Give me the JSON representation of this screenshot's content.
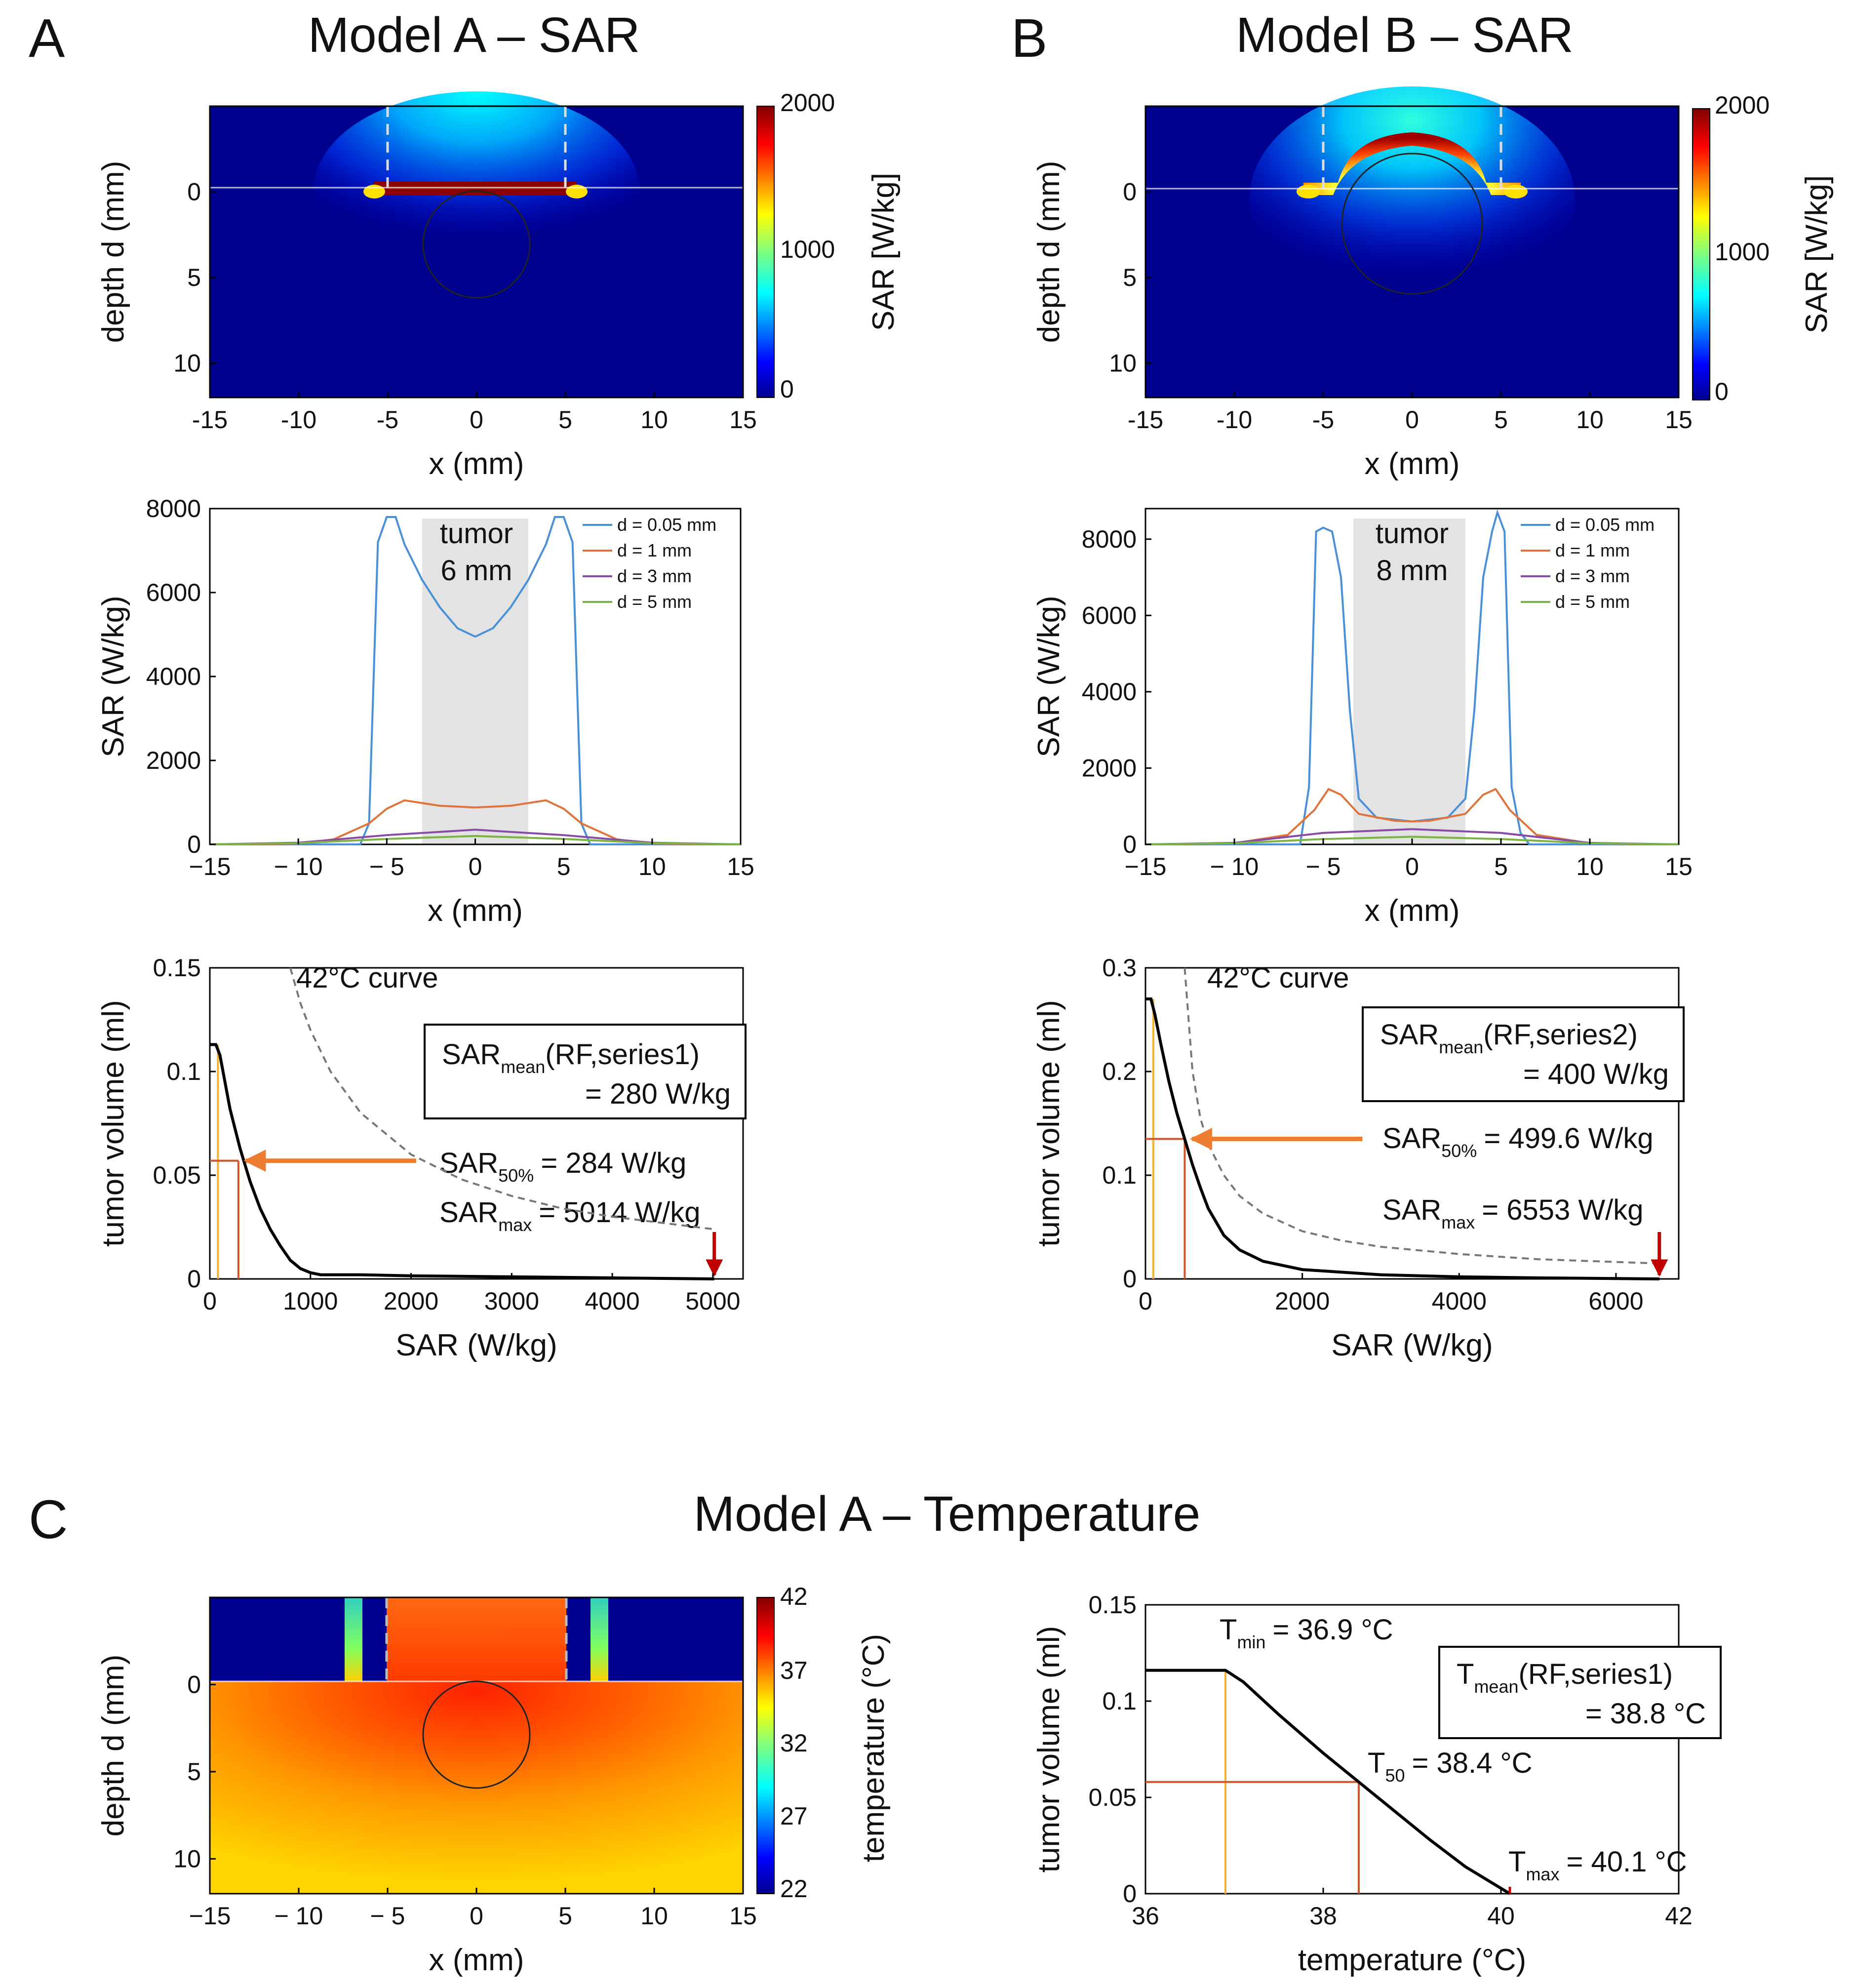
{
  "panels": {
    "A": {
      "letter": "A",
      "title": "Model A – SAR"
    },
    "B": {
      "letter": "B",
      "title": "Model B – SAR"
    },
    "C": {
      "letter": "C",
      "title": "Model A – Temperature"
    }
  },
  "colors": {
    "series_blue": "#4a90d9",
    "series_orange": "#e0733a",
    "series_purple": "#8a4aa8",
    "series_green": "#7cb342",
    "arrow_orange": "#ed7d31",
    "marker_red": "#c00000",
    "tumor_shade": "#e3e3e3",
    "heatmap_dark_blue": "#00008f"
  },
  "chart_data": [
    {
      "id": "A1",
      "type": "heatmap",
      "xlabel": "x (mm)",
      "ylabel": "depth d (mm)",
      "xlim": [
        -15,
        15
      ],
      "ylim": [
        12,
        -5
      ],
      "xticks": [
        "-15",
        "-10",
        "-5",
        "0",
        "5",
        "10",
        "15"
      ],
      "xtick_values": [
        -15,
        -10,
        -5,
        0,
        5,
        10,
        15
      ],
      "yticks": [
        "0",
        "5",
        "10"
      ],
      "ytick_values": [
        0,
        5,
        10
      ],
      "colorbar": {
        "label": "SAR [W/kg]",
        "min": 0,
        "max": 2000,
        "ticks": [
          "0",
          "1000",
          "2000"
        ]
      },
      "electrode_dashes_x": [
        -5,
        5
      ],
      "tumor_circle": {
        "cx": 0,
        "cy": 3,
        "r": 3
      }
    },
    {
      "id": "B1",
      "type": "heatmap",
      "xlabel": "x (mm)",
      "ylabel": "depth d (mm)",
      "xlim": [
        -15,
        15
      ],
      "ylim": [
        12,
        -5
      ],
      "xticks": [
        "-15",
        "-10",
        "-5",
        "0",
        "5",
        "10",
        "15"
      ],
      "xtick_values": [
        -15,
        -10,
        -5,
        0,
        5,
        10,
        15
      ],
      "yticks": [
        "0",
        "5",
        "10"
      ],
      "ytick_values": [
        0,
        5,
        10
      ],
      "colorbar": {
        "label": "SAR [W/kg]",
        "min": 0,
        "max": 2000,
        "ticks": [
          "0",
          "1000",
          "2000"
        ]
      },
      "electrode_dashes_x": [
        -5,
        5
      ],
      "tumor_circle": {
        "cx": 0,
        "cy": 2,
        "r": 4
      }
    },
    {
      "id": "A2",
      "type": "line",
      "xlabel": "x (mm)",
      "ylabel": "SAR (W/kg)",
      "xlim": [
        -15,
        15
      ],
      "ylim": [
        0,
        8000
      ],
      "xticks": [
        "−15",
        "− 10",
        "− 5",
        "0",
        "5",
        "10",
        "15"
      ],
      "xtick_values": [
        -15,
        -10,
        -5,
        0,
        5,
        10,
        15
      ],
      "yticks": [
        "0",
        "2000",
        "4000",
        "6000",
        "8000"
      ],
      "ytick_values": [
        0,
        2000,
        4000,
        6000,
        8000
      ],
      "tumor_band": {
        "x0": -3,
        "x1": 3,
        "label_1": "tumor",
        "label_2": "6 mm"
      },
      "series": [
        {
          "name": "d = 0.05 mm",
          "color": "#4a90d9",
          "x": [
            -15,
            -6.5,
            -6,
            -5.5,
            -5,
            -4.5,
            -4,
            -3,
            -2,
            -1,
            0,
            1,
            2,
            3,
            4,
            4.5,
            5,
            5.5,
            6,
            6.5,
            15
          ],
          "y": [
            0,
            0,
            500,
            7200,
            7800,
            7800,
            7150,
            6300,
            5650,
            5150,
            4950,
            5150,
            5650,
            6300,
            7150,
            7800,
            7800,
            7200,
            500,
            0,
            0
          ]
        },
        {
          "name": "d = 1 mm",
          "color": "#e0733a",
          "x": [
            -15,
            -10,
            -8,
            -6,
            -5,
            -4,
            -2,
            0,
            2,
            4,
            5,
            6,
            8,
            10,
            15
          ],
          "y": [
            0,
            20,
            120,
            500,
            850,
            1050,
            920,
            880,
            920,
            1050,
            850,
            500,
            120,
            20,
            0
          ]
        },
        {
          "name": "d = 3 mm",
          "color": "#8a4aa8",
          "x": [
            -15,
            -10,
            -5,
            0,
            5,
            10,
            15
          ],
          "y": [
            0,
            40,
            220,
            350,
            220,
            40,
            0
          ]
        },
        {
          "name": "d = 5 mm",
          "color": "#7cb342",
          "x": [
            -15,
            -10,
            -5,
            0,
            5,
            10,
            15
          ],
          "y": [
            0,
            30,
            130,
            200,
            130,
            30,
            0
          ]
        }
      ]
    },
    {
      "id": "B2",
      "type": "line",
      "xlabel": "x (mm)",
      "ylabel": "SAR (W/kg)",
      "xlim": [
        -15,
        15
      ],
      "ylim": [
        0,
        8800
      ],
      "xticks": [
        "−15",
        "− 10",
        "− 5",
        "0",
        "5",
        "10",
        "15"
      ],
      "xtick_values": [
        -15,
        -10,
        -5,
        0,
        5,
        10,
        15
      ],
      "yticks": [
        "0",
        "2000",
        "4000",
        "6000",
        "8000"
      ],
      "ytick_values": [
        0,
        2000,
        4000,
        6000,
        8000
      ],
      "tumor_band": {
        "x0": -3.3,
        "x1": 3,
        "label_1": "tumor",
        "label_2": "8 mm"
      },
      "series": [
        {
          "name": "d = 0.05 mm",
          "color": "#4a90d9",
          "x": [
            -15,
            -6.3,
            -5.8,
            -5.4,
            -5,
            -4.5,
            -4,
            -3.5,
            -3,
            -2,
            0,
            2,
            3,
            3.5,
            4,
            4.5,
            4.8,
            5.2,
            5.6,
            6.1,
            6.6,
            15
          ],
          "y": [
            0,
            0,
            1500,
            8200,
            8300,
            8200,
            7000,
            3500,
            1200,
            700,
            600,
            700,
            1200,
            3500,
            7000,
            8200,
            8700,
            8200,
            1500,
            300,
            0,
            0
          ]
        },
        {
          "name": "d = 1 mm",
          "color": "#e0733a",
          "x": [
            -15,
            -10,
            -7,
            -5.5,
            -4.7,
            -4,
            -3,
            -1,
            0,
            1,
            3,
            4,
            4.7,
            5.5,
            7,
            10,
            15
          ],
          "y": [
            0,
            30,
            250,
            900,
            1450,
            1300,
            800,
            620,
            600,
            620,
            800,
            1300,
            1450,
            900,
            250,
            30,
            0
          ]
        },
        {
          "name": "d = 3 mm",
          "color": "#8a4aa8",
          "x": [
            -15,
            -10,
            -5,
            0,
            5,
            10,
            15
          ],
          "y": [
            0,
            40,
            300,
            400,
            300,
            40,
            0
          ]
        },
        {
          "name": "d = 5 mm",
          "color": "#7cb342",
          "x": [
            -15,
            -10,
            -5,
            0,
            5,
            10,
            15
          ],
          "y": [
            0,
            30,
            140,
            200,
            140,
            30,
            0
          ]
        }
      ]
    },
    {
      "id": "A3",
      "type": "line",
      "xlabel": "SAR (W/kg)",
      "ylabel": "tumor volume (ml)",
      "xlim": [
        0,
        5300
      ],
      "ylim": [
        0,
        0.15
      ],
      "xticks": [
        "0",
        "1000",
        "2000",
        "3000",
        "4000",
        "5000"
      ],
      "xtick_values": [
        0,
        1000,
        2000,
        3000,
        4000,
        5000
      ],
      "yticks": [
        "0",
        "0.05",
        "0.1",
        "0.15"
      ],
      "ytick_values": [
        0,
        0.05,
        0.1,
        0.15
      ],
      "curve_label": "42°C curve",
      "box_text": {
        "main": "SAR",
        "sub": "mean",
        "rest": "(RF,series1)",
        "line2": "= 280 W/kg"
      },
      "sar50": {
        "main": "SAR",
        "sub": "50%",
        "value": "= 284 W/kg",
        "x": 284,
        "y": 0.057
      },
      "sarmax": {
        "main": "SAR",
        "sub": "max",
        "value": "= 5014 W/kg",
        "x": 5014
      },
      "mean_x": 80,
      "volume_curve": {
        "x": [
          0,
          60,
          100,
          200,
          300,
          400,
          500,
          600,
          700,
          800,
          900,
          1000,
          1100,
          1500,
          2000,
          3000,
          4000,
          5014
        ],
        "y": [
          0.113,
          0.113,
          0.108,
          0.082,
          0.063,
          0.047,
          0.034,
          0.024,
          0.016,
          0.009,
          0.005,
          0.003,
          0.002,
          0.002,
          0.0015,
          0.001,
          0.0005,
          0
        ]
      },
      "reference_curve": {
        "x": [
          800,
          900,
          1000,
          1200,
          1500,
          2000,
          2500,
          3000,
          3500,
          4000,
          4500,
          5000
        ],
        "y": [
          0.15,
          0.133,
          0.12,
          0.1,
          0.08,
          0.06,
          0.048,
          0.04,
          0.034,
          0.03,
          0.027,
          0.024
        ]
      }
    },
    {
      "id": "B3",
      "type": "line",
      "xlabel": "SAR (W/kg)",
      "ylabel": "tumor volume (ml)",
      "xlim": [
        0,
        6800
      ],
      "ylim": [
        0,
        0.3
      ],
      "xticks": [
        "0",
        "2000",
        "4000",
        "6000"
      ],
      "xtick_values": [
        0,
        2000,
        4000,
        6000
      ],
      "yticks": [
        "0",
        "0.1",
        "0.2",
        "0.3"
      ],
      "ytick_values": [
        0,
        0.1,
        0.2,
        0.3
      ],
      "curve_label": "42°C curve",
      "box_text": {
        "main": "SAR",
        "sub": "mean",
        "rest": "(RF,series2)",
        "line2": "= 400 W/kg"
      },
      "sar50": {
        "main": "SAR",
        "sub": "50%",
        "value": "= 499.6 W/kg",
        "x": 500,
        "y": 0.135
      },
      "sarmax": {
        "main": "SAR",
        "sub": "max",
        "value": "= 6553 W/kg",
        "x": 6553
      },
      "mean_x": 100,
      "volume_curve": {
        "x": [
          0,
          70,
          120,
          200,
          300,
          400,
          500,
          600,
          700,
          800,
          1000,
          1200,
          1500,
          2000,
          3000,
          4000,
          5000,
          6553
        ],
        "y": [
          0.27,
          0.27,
          0.255,
          0.225,
          0.19,
          0.16,
          0.135,
          0.11,
          0.088,
          0.068,
          0.042,
          0.028,
          0.017,
          0.009,
          0.004,
          0.002,
          0.001,
          0
        ]
      },
      "reference_curve": {
        "x": [
          500,
          600,
          700,
          800,
          1000,
          1200,
          1500,
          2000,
          2500,
          3000,
          4000,
          5000,
          6500
        ],
        "y": [
          0.3,
          0.2,
          0.155,
          0.13,
          0.1,
          0.08,
          0.063,
          0.046,
          0.037,
          0.031,
          0.024,
          0.019,
          0.015
        ]
      }
    },
    {
      "id": "C1",
      "type": "heatmap",
      "xlabel": "x (mm)",
      "ylabel": "depth d (mm)",
      "xlim": [
        -15,
        15
      ],
      "ylim": [
        12,
        -5
      ],
      "xticks": [
        "−15",
        "− 10",
        "− 5",
        "0",
        "5",
        "10",
        "15"
      ],
      "xtick_values": [
        -15,
        -10,
        -5,
        0,
        5,
        10,
        15
      ],
      "yticks": [
        "0",
        "5",
        "10"
      ],
      "ytick_values": [
        0,
        5,
        10
      ],
      "colorbar": {
        "label": "temperature (°C)",
        "min": 22,
        "max": 42,
        "ticks": [
          "22",
          "27",
          "32",
          "37",
          "42"
        ]
      },
      "tumor_circle": {
        "cx": 0,
        "cy": 3,
        "r": 3
      }
    },
    {
      "id": "C2",
      "type": "line",
      "xlabel": "temperature  (°C)",
      "ylabel": "tumor volume (ml)",
      "xlim": [
        36,
        42
      ],
      "ylim": [
        0,
        0.15
      ],
      "xticks": [
        "36",
        "38",
        "40",
        "42"
      ],
      "xtick_values": [
        36,
        38,
        40,
        42
      ],
      "yticks": [
        "0",
        "0.05",
        "0.1",
        "0.15"
      ],
      "ytick_values": [
        0,
        0.05,
        0.1,
        0.15
      ],
      "tmin": {
        "main": "T",
        "sub": "min",
        "value": "= 36.9 °C",
        "x": 36.9
      },
      "t50": {
        "main": "T",
        "sub": "50",
        "value": "= 38.4 °C",
        "x": 38.4,
        "y": 0.058
      },
      "tmax": {
        "main": "T",
        "sub": "max",
        "value": "= 40.1 °C",
        "x": 40.1
      },
      "box_text": {
        "main": "T",
        "sub": "mean",
        "rest": "(RF,series1)",
        "line2": "= 38.8 °C"
      },
      "volume_curve": {
        "x": [
          36,
          36.9,
          37.1,
          37.5,
          38,
          38.4,
          38.8,
          39.2,
          39.6,
          40.1
        ],
        "y": [
          0.116,
          0.116,
          0.11,
          0.093,
          0.073,
          0.058,
          0.043,
          0.028,
          0.014,
          0
        ]
      }
    }
  ]
}
